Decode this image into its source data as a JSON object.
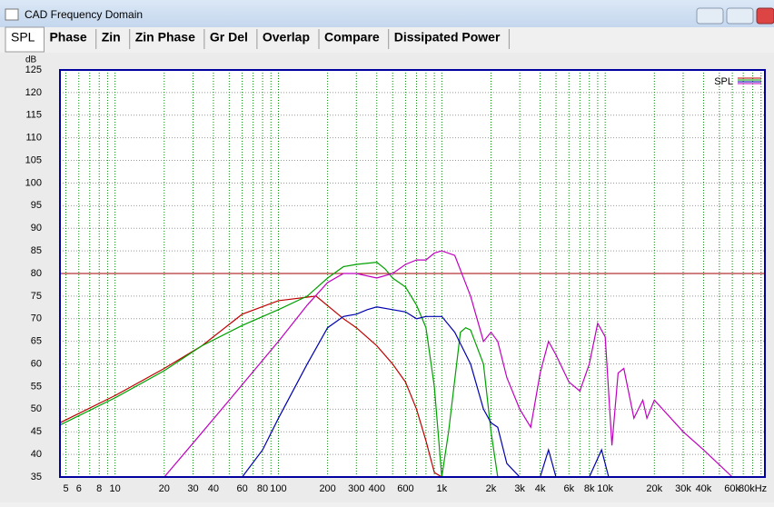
{
  "window": {
    "title": "CAD Frequency Domain"
  },
  "tabs": [
    "SPL",
    "Phase",
    "Zin",
    "Zin Phase",
    "Gr Del",
    "Overlap",
    "Compare",
    "Dissipated Power"
  ],
  "chart_data": {
    "type": "line",
    "y_unit": "dB",
    "legend": "SPL",
    "legend_position": "top-right",
    "log_x": true,
    "xlim": [
      4.6,
      95000
    ],
    "ylim": [
      35,
      125
    ],
    "xticks": [
      5,
      6,
      8,
      10,
      20,
      30,
      40,
      60,
      80,
      100,
      200,
      300,
      400,
      600,
      {
        "value": 1000,
        "label": "1k"
      },
      {
        "value": 2000,
        "label": "2k"
      },
      {
        "value": 3000,
        "label": "3k"
      },
      {
        "value": 4000,
        "label": "4k"
      },
      {
        "value": 6000,
        "label": "6k"
      },
      {
        "value": 8000,
        "label": "8k"
      },
      {
        "value": 10000,
        "label": "10k"
      },
      {
        "value": 20000,
        "label": "20k"
      },
      {
        "value": 30000,
        "label": "30k"
      },
      {
        "value": 40000,
        "label": "40k"
      },
      {
        "value": 60000,
        "label": "60k"
      },
      {
        "value": 80000,
        "label": "80kHz"
      }
    ],
    "x_minor_grid": [
      7,
      9,
      50,
      70,
      90,
      500,
      700,
      800,
      900,
      5000,
      7000,
      9000,
      50000,
      70000,
      90000
    ],
    "yticks": [
      35,
      40,
      45,
      50,
      55,
      60,
      65,
      70,
      75,
      80,
      85,
      90,
      95,
      100,
      105,
      110,
      115,
      120,
      125
    ],
    "reference_line": {
      "value": 80,
      "color": "#a00000"
    },
    "grid": true,
    "series": [
      {
        "color": "#c00000",
        "x": [
          4.6,
          10,
          20,
          34,
          60,
          100,
          170,
          250,
          300,
          400,
          500,
          600,
          700,
          800,
          900,
          1000,
          2000
        ],
        "values": [
          47,
          53,
          59,
          64,
          71,
          74,
          75,
          70,
          68,
          64,
          60,
          56,
          50,
          43,
          36,
          35,
          35
        ]
      },
      {
        "color": "#00a000",
        "x": [
          4.6,
          10,
          20,
          34,
          60,
          100,
          150,
          200,
          250,
          300,
          400,
          450,
          500,
          600,
          700,
          800,
          900,
          1000,
          1100,
          1300,
          1400,
          1500,
          1800,
          2000,
          2200
        ],
        "values": [
          46.5,
          52.5,
          58.5,
          64,
          68.5,
          72,
          75,
          79,
          81.5,
          82,
          82.5,
          81,
          79,
          77,
          73,
          68,
          55,
          35,
          45,
          67,
          68,
          67.5,
          60,
          45,
          35
        ]
      },
      {
        "color": "#0000b0",
        "x": [
          60,
          80,
          100,
          150,
          200,
          250,
          300,
          350,
          400,
          500,
          600,
          700,
          800,
          1000,
          1200,
          1500,
          1800,
          2000,
          2200,
          2500,
          3000,
          4000,
          4500,
          5000,
          8000,
          9500,
          10500
        ],
        "values": [
          35,
          41,
          48,
          60,
          68,
          70.5,
          71,
          72,
          72.6,
          72,
          71.5,
          70,
          70.5,
          70.5,
          67,
          60,
          50,
          47,
          46,
          38,
          35,
          35,
          41,
          35,
          35,
          41,
          35
        ]
      },
      {
        "color": "#c000c0",
        "x": [
          20,
          30,
          50,
          100,
          150,
          200,
          250,
          300,
          400,
          500,
          600,
          700,
          800,
          900,
          1000,
          1200,
          1500,
          1800,
          2000,
          2200,
          2500,
          3000,
          3500,
          4000,
          4500,
          5000,
          6000,
          7000,
          8000,
          9000,
          10000,
          11000,
          12000,
          13000,
          15000,
          17000,
          18000,
          20000,
          30000,
          40000,
          60000
        ],
        "values": [
          35,
          42.5,
          52,
          65,
          73,
          78,
          80,
          80,
          79,
          80,
          82,
          83,
          83,
          84.5,
          85,
          84,
          75,
          65,
          67,
          65,
          57,
          50,
          46,
          58,
          65,
          62,
          56,
          54,
          60,
          69,
          66,
          42,
          58,
          59,
          48,
          52,
          48,
          52,
          45,
          41,
          35
        ]
      }
    ]
  }
}
